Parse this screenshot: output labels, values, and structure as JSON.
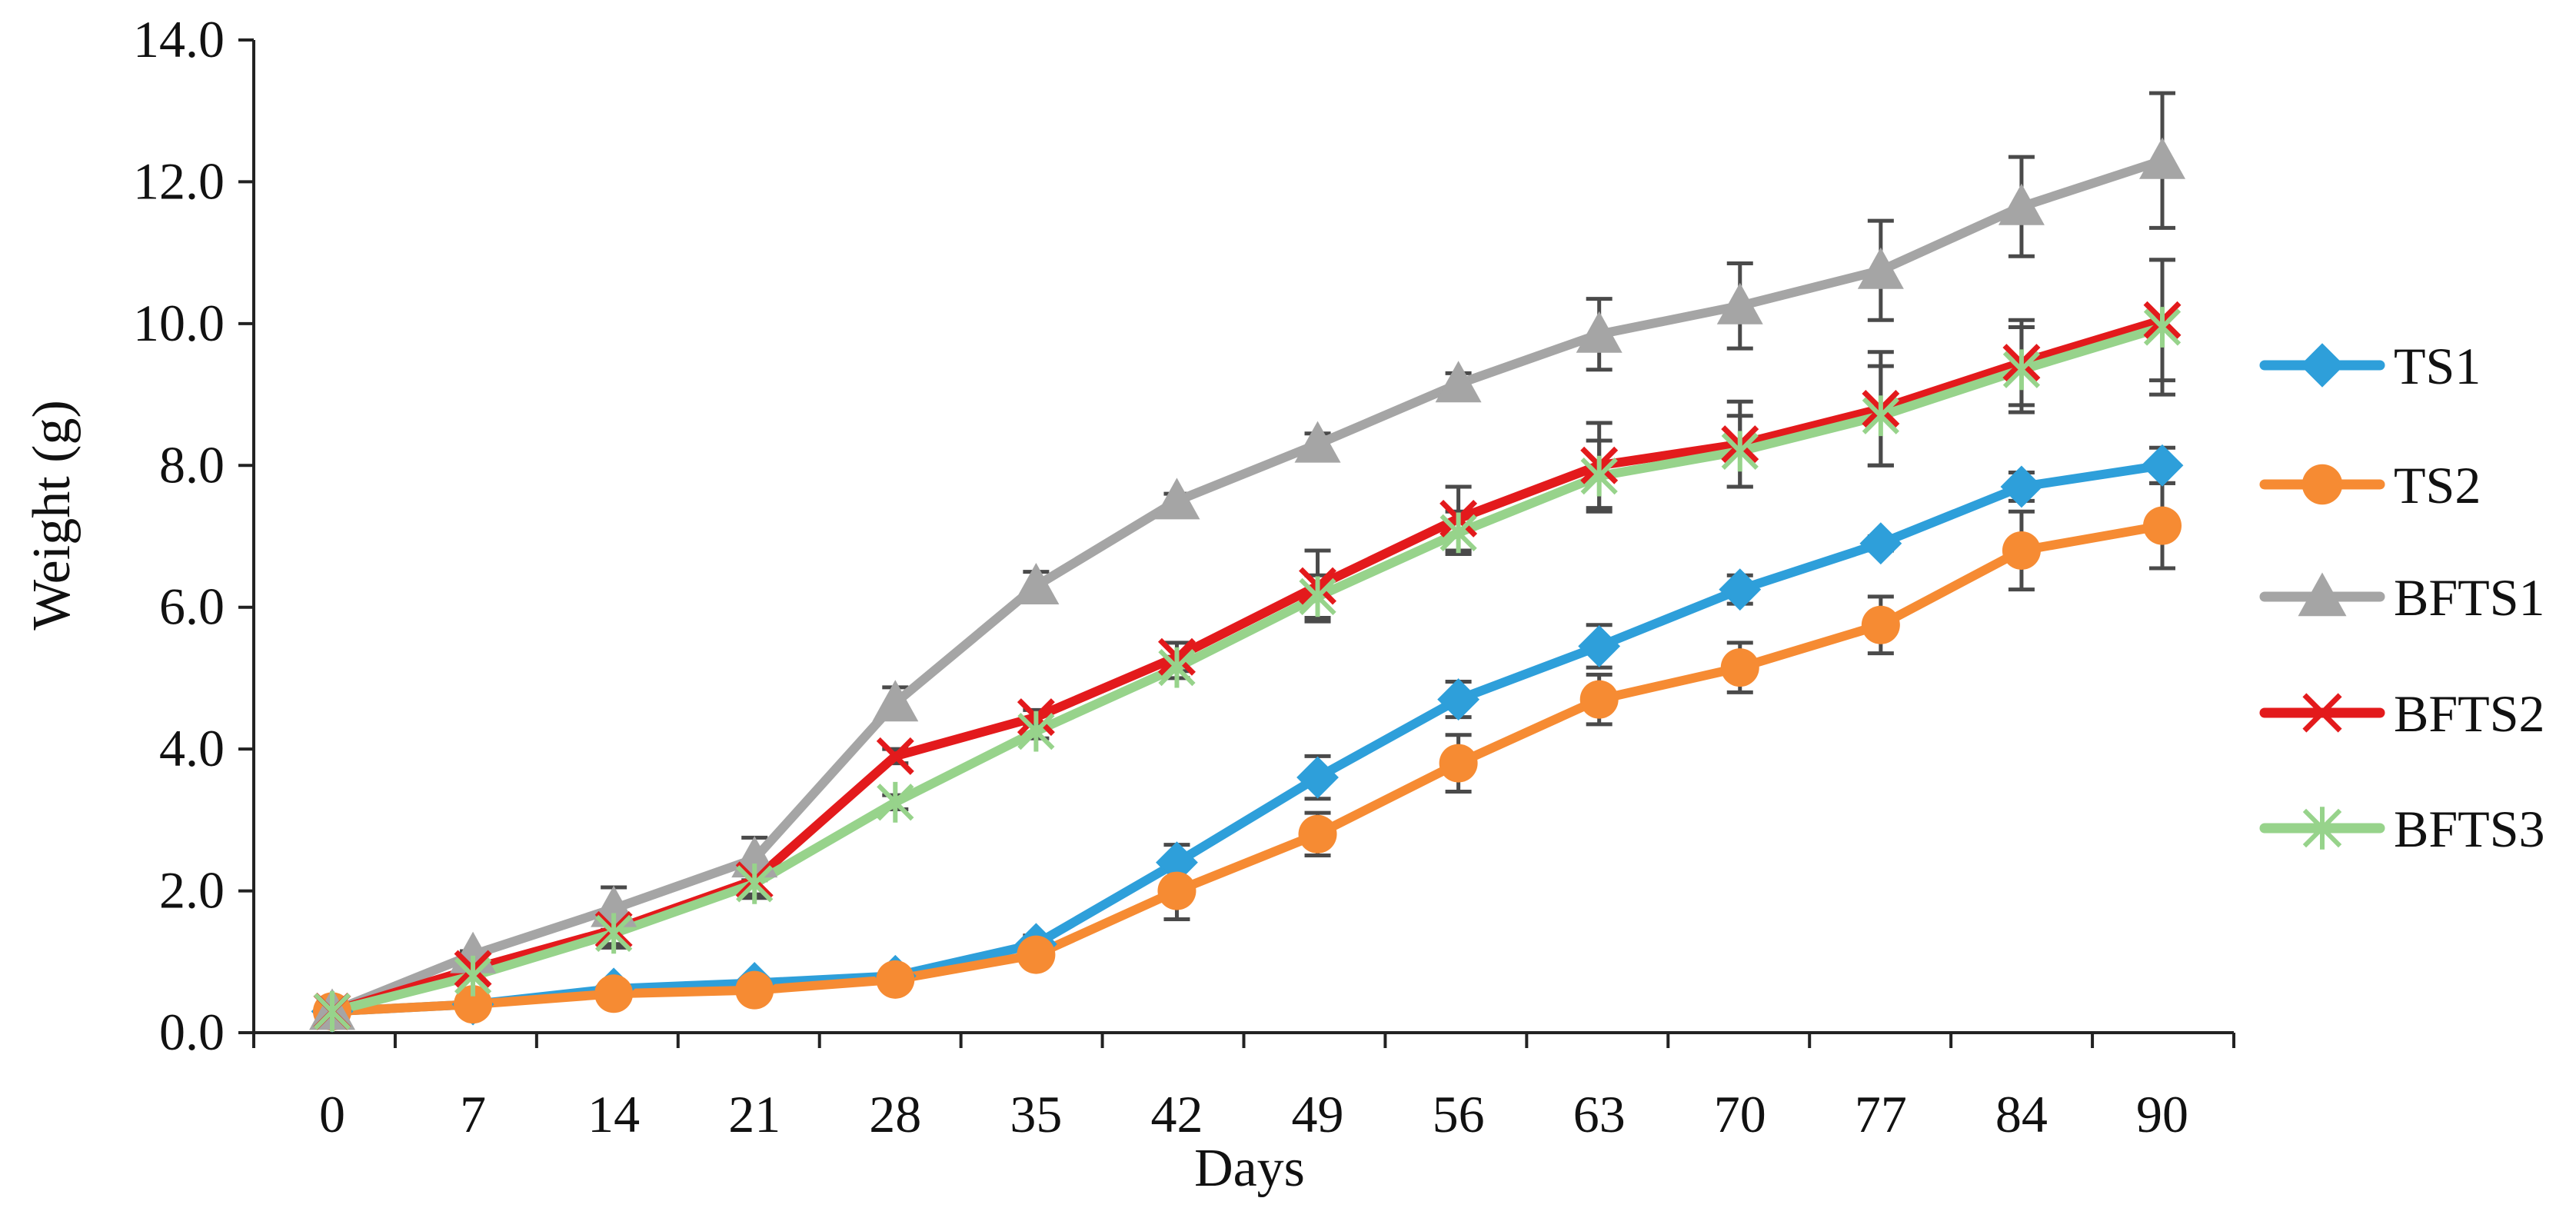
{
  "chart_data": {
    "type": "line",
    "title": "",
    "xlabel": "Days",
    "ylabel": "Weight (g)",
    "categories": [
      "0",
      "7",
      "14",
      "21",
      "28",
      "35",
      "42",
      "49",
      "56",
      "63",
      "70",
      "77",
      "84",
      "90"
    ],
    "ylim": [
      0,
      14
    ],
    "yticks": [
      "0.0",
      "2.0",
      "4.0",
      "6.0",
      "8.0",
      "10.0",
      "12.0",
      "14.0"
    ],
    "legend_position": "right",
    "series": [
      {
        "name": "TS1",
        "color": "#2E9FDA",
        "marker": "diamond",
        "values": [
          0.3,
          0.4,
          0.62,
          0.7,
          0.8,
          1.25,
          2.4,
          3.6,
          4.7,
          5.45,
          6.25,
          6.9,
          7.7,
          8.0
        ],
        "errors": [
          0.05,
          0.05,
          0.05,
          0.05,
          0.08,
          0.12,
          0.25,
          0.3,
          0.25,
          0.3,
          0.2,
          0.1,
          0.2,
          0.25
        ]
      },
      {
        "name": "TS2",
        "color": "#F68B33",
        "marker": "circle",
        "values": [
          0.3,
          0.4,
          0.55,
          0.6,
          0.75,
          1.1,
          2.0,
          2.8,
          3.8,
          4.7,
          5.15,
          5.75,
          6.8,
          7.15
        ],
        "errors": [
          0.05,
          0.05,
          0.05,
          0.05,
          0.1,
          0.15,
          0.4,
          0.3,
          0.4,
          0.35,
          0.35,
          0.4,
          0.55,
          0.6
        ]
      },
      {
        "name": "BFTS1",
        "color": "#A5A5A5",
        "marker": "triangle",
        "values": [
          0.3,
          1.1,
          1.75,
          2.45,
          4.65,
          6.3,
          7.5,
          8.3,
          9.15,
          9.85,
          10.25,
          10.75,
          11.65,
          12.3
        ],
        "errors": [
          0.05,
          0.05,
          0.3,
          0.3,
          0.22,
          0.2,
          0.1,
          0.15,
          0.15,
          0.5,
          0.6,
          0.7,
          0.7,
          0.95
        ]
      },
      {
        "name": "BFTS2",
        "color": "#E31A1C",
        "marker": "x",
        "values": [
          0.3,
          0.9,
          1.45,
          2.15,
          3.9,
          4.45,
          5.3,
          6.3,
          7.25,
          8.0,
          8.3,
          8.8,
          9.45,
          10.05
        ],
        "errors": [
          0.05,
          0.05,
          0.2,
          0.2,
          0.1,
          0.1,
          0.2,
          0.5,
          0.45,
          0.6,
          0.6,
          0.8,
          0.6,
          0.85
        ]
      },
      {
        "name": "BFTS3",
        "color": "#97D38B",
        "marker": "asterisk",
        "values": [
          0.3,
          0.8,
          1.4,
          2.1,
          3.25,
          4.25,
          5.15,
          6.15,
          7.05,
          7.85,
          8.2,
          8.7,
          9.35,
          9.95
        ],
        "errors": [
          0.05,
          0.05,
          0.2,
          0.2,
          0.1,
          0.1,
          0.15,
          0.3,
          0.3,
          0.5,
          0.5,
          0.7,
          0.6,
          0.95
        ]
      }
    ]
  }
}
